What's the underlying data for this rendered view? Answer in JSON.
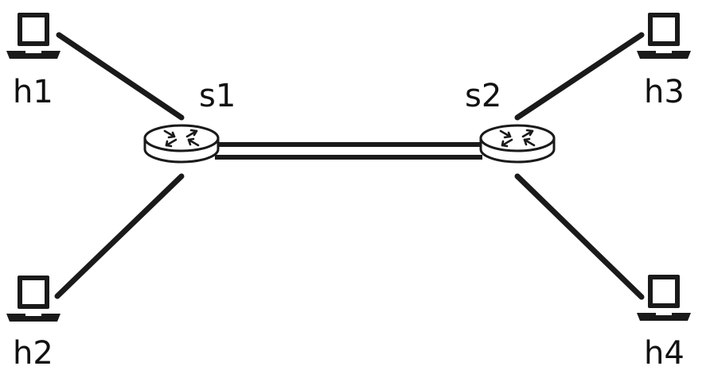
{
  "hosts": [
    {
      "id": "h1",
      "label": "h1",
      "icon": "laptop-icon"
    },
    {
      "id": "h2",
      "label": "h2",
      "icon": "laptop-icon"
    },
    {
      "id": "h3",
      "label": "h3",
      "icon": "laptop-icon"
    },
    {
      "id": "h4",
      "label": "h4",
      "icon": "laptop-icon"
    }
  ],
  "switches": [
    {
      "id": "s1",
      "label": "s1",
      "icon": "switch-icon"
    },
    {
      "id": "s2",
      "label": "s2",
      "icon": "switch-icon"
    }
  ],
  "links": [
    {
      "from": "h1",
      "to": "s1",
      "type": "single"
    },
    {
      "from": "h2",
      "to": "s1",
      "type": "single"
    },
    {
      "from": "s1",
      "to": "s2",
      "type": "double"
    },
    {
      "from": "s2",
      "to": "h3",
      "type": "single"
    },
    {
      "from": "s2",
      "to": "h4",
      "type": "single"
    }
  ],
  "colors": {
    "line": "#1a1a1a",
    "text": "#111111",
    "background": "#ffffff"
  }
}
